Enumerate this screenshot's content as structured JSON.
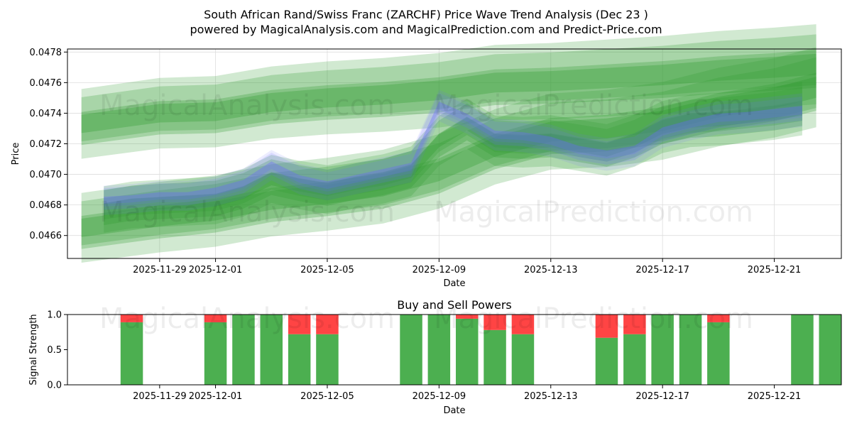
{
  "title_line1": "South African Rand/Swiss Franc (ZARCHF) Price Wave Trend Analysis (Dec 23 )",
  "title_line2": "powered by MagicalAnalysis.com and MagicalPrediction.com and Predict-Price.com",
  "watermarks": [
    "MagicalAnalysis.com",
    "MagicalPrediction.com"
  ],
  "colors": {
    "green": "#2e9b2e",
    "blue": "#6a6aff",
    "buy": "#4caf50",
    "sell": "#ff4444",
    "grid": "#dddddd"
  },
  "chart_data": [
    {
      "type": "area",
      "xlabel": "Date",
      "ylabel": "Price",
      "x_tick_labels": [
        "2025-11-29",
        "2025-12-01",
        "2025-12-05",
        "2025-12-09",
        "2025-12-13",
        "2025-12-17",
        "2025-12-21"
      ],
      "x_tick_days": [
        2,
        4,
        8,
        12,
        16,
        20,
        24
      ],
      "x_range_days": [
        -1.3,
        26.4
      ],
      "y_tick_labels": [
        "0.0466",
        "0.0468",
        "0.0470",
        "0.0472",
        "0.0474",
        "0.0476",
        "0.0478"
      ],
      "ylim": [
        0.04645,
        0.04782
      ],
      "series": [
        {
          "name": "upper-trend",
          "color": "green",
          "x": [
            -0.8,
            2,
            4,
            6,
            8,
            10,
            12,
            14,
            16,
            18,
            20,
            22,
            24,
            25.5
          ],
          "y": [
            0.04733,
            0.0474,
            0.04741,
            0.04747,
            0.0475,
            0.04752,
            0.04755,
            0.0476,
            0.04761,
            0.04763,
            0.04765,
            0.04768,
            0.0477,
            0.04772
          ],
          "band": 0.00012
        },
        {
          "name": "lower-trend",
          "color": "green",
          "x": [
            -0.8,
            2,
            4,
            6,
            8,
            10,
            12,
            14,
            16,
            18,
            20,
            22,
            24,
            25.5
          ],
          "y": [
            0.04665,
            0.04672,
            0.04676,
            0.04683,
            0.04687,
            0.04692,
            0.04702,
            0.04718,
            0.04728,
            0.0473,
            0.04735,
            0.04744,
            0.0475,
            0.04757
          ],
          "band": 0.00012
        },
        {
          "name": "wave-green",
          "color": "green",
          "x": [
            0,
            1,
            2,
            3,
            4,
            5,
            6,
            7,
            8,
            9,
            10,
            11,
            12,
            13,
            14,
            15,
            16,
            17,
            18,
            19,
            20,
            21,
            22,
            23,
            24,
            25
          ],
          "y": [
            0.04677,
            0.0468,
            0.04681,
            0.04682,
            0.04683,
            0.04688,
            0.04697,
            0.04693,
            0.0469,
            0.04694,
            0.04697,
            0.04702,
            0.04722,
            0.04733,
            0.04722,
            0.04721,
            0.04722,
            0.04719,
            0.04716,
            0.04722,
            0.04731,
            0.04735,
            0.04736,
            0.04738,
            0.0474,
            0.04743
          ],
          "band": 8e-05
        },
        {
          "name": "wave-blue",
          "color": "blue",
          "x": [
            0,
            1,
            2,
            3,
            4,
            5,
            6,
            7,
            8,
            9,
            10,
            11,
            12,
            13,
            14,
            15,
            16,
            17,
            18,
            19,
            20,
            21,
            22,
            23,
            24,
            25
          ],
          "y": [
            0.04683,
            0.04684,
            0.04686,
            0.04686,
            0.04689,
            0.04694,
            0.04706,
            0.04697,
            0.04693,
            0.04697,
            0.04701,
            0.04705,
            0.04745,
            0.04737,
            0.04726,
            0.04725,
            0.04722,
            0.04716,
            0.04713,
            0.04716,
            0.04728,
            0.04733,
            0.04737,
            0.04738,
            0.0474,
            0.04742
          ],
          "band": 6e-05
        }
      ]
    },
    {
      "type": "bar",
      "title": "Buy and Sell Powers",
      "xlabel": "Date",
      "ylabel": "Signal Strength",
      "x_tick_labels": [
        "2025-11-29",
        "2025-12-01",
        "2025-12-05",
        "2025-12-09",
        "2025-12-13",
        "2025-12-17",
        "2025-12-21"
      ],
      "x_tick_days": [
        2,
        4,
        8,
        12,
        16,
        20,
        24
      ],
      "x_range_days": [
        -1.3,
        26.4
      ],
      "y_tick_labels": [
        "0.0",
        "0.5",
        "1.0"
      ],
      "ylim": [
        0,
        1
      ],
      "bar_days": [
        1,
        4,
        5,
        6,
        7,
        8,
        11,
        12,
        13,
        14,
        15,
        18,
        19,
        20,
        21,
        22,
        25,
        26
      ],
      "buy": [
        0.89,
        0.89,
        1.0,
        1.0,
        0.72,
        0.72,
        1.0,
        1.0,
        0.94,
        0.78,
        0.72,
        0.67,
        0.72,
        1.0,
        1.0,
        0.89,
        1.0,
        1.0
      ],
      "sell": [
        0.11,
        0.11,
        0.0,
        0.0,
        0.28,
        0.28,
        0.0,
        0.0,
        0.06,
        0.22,
        0.28,
        0.33,
        0.28,
        0.0,
        0.0,
        0.11,
        0.0,
        0.0
      ]
    }
  ]
}
